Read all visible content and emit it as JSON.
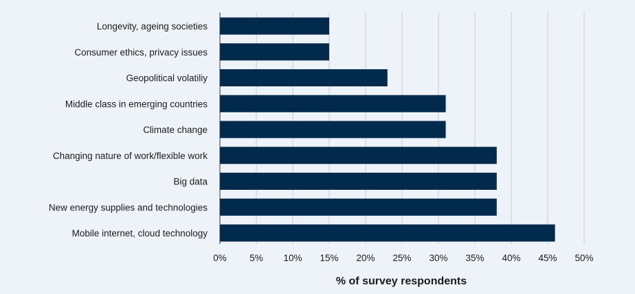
{
  "chart_data": {
    "type": "bar",
    "orientation": "horizontal",
    "categories": [
      "Longevity, ageing societies",
      "Consumer ethics, privacy issues",
      "Geopolitical volatiliy",
      "Middle class in emerging countries",
      "Climate change",
      "Changing nature of work/flexible work",
      "Big data",
      "New energy supplies and technologies",
      "Mobile internet, cloud technology"
    ],
    "values": [
      15,
      15,
      23,
      31,
      31,
      38,
      38,
      38,
      46
    ],
    "xlabel": "% of survey respondents",
    "xlim": [
      0,
      50
    ],
    "ticks": [
      "0%",
      "5%",
      "10%",
      "15%",
      "20%",
      "25%",
      "30%",
      "35%",
      "40%",
      "45%",
      "50%"
    ],
    "tick_values": [
      0,
      5,
      10,
      15,
      20,
      25,
      30,
      35,
      40,
      45,
      50
    ],
    "grid": true,
    "bar_color": "#022a4d",
    "background_color": "#eef3fa"
  }
}
